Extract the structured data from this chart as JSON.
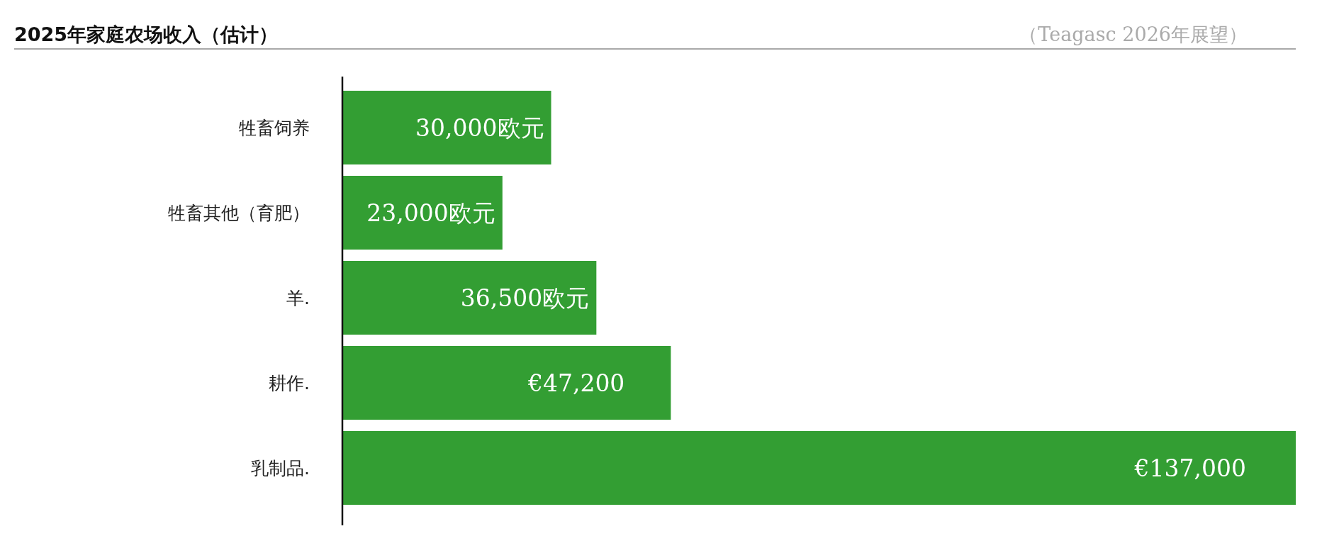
{
  "chart_data": {
    "type": "bar",
    "orientation": "horizontal",
    "title": "2025年家庭农场收入（估计）",
    "annotations": [
      "（Teagasc 2026年展望）"
    ],
    "categories": [
      "牲畜饲养",
      "牲畜其他（育肥）",
      "羊.",
      "耕作.",
      "乳制品."
    ],
    "values": [
      30000,
      23000,
      36500,
      47200,
      137000
    ],
    "value_labels": [
      "30,000欧元",
      "23,000欧元",
      "36,500欧元",
      "€47,200",
      "€137,000"
    ],
    "color": "#339e33"
  }
}
